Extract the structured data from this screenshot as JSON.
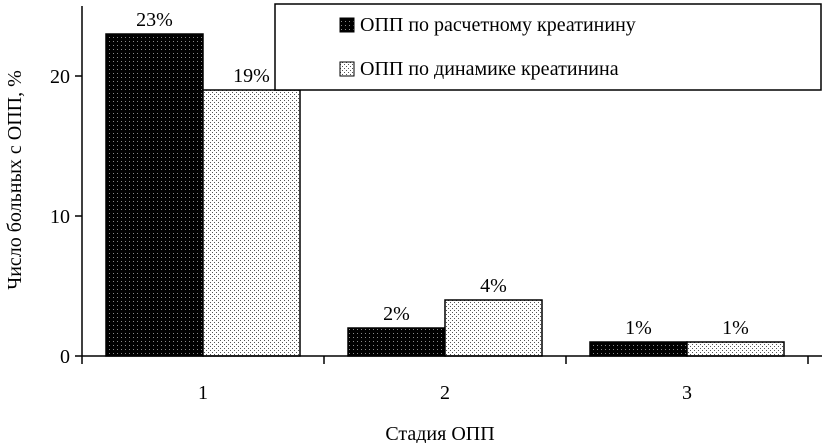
{
  "chart_data": {
    "type": "bar",
    "title": "",
    "xlabel": "Стадия ОПП",
    "ylabel": "Число больных с ОПП, %",
    "categories": [
      "1",
      "2",
      "3"
    ],
    "ylim": [
      0,
      25
    ],
    "yticks": [
      0,
      10,
      20
    ],
    "grid": false,
    "legend_position": "top-right",
    "series": [
      {
        "name": "ОПП по расчетному креатинину",
        "values": [
          23,
          2,
          1
        ],
        "labels": [
          "23%",
          "2%",
          "1%"
        ],
        "fill": "pattern-dark",
        "color": "#111111"
      },
      {
        "name": "ОПП по динамике креатинина",
        "values": [
          19,
          4,
          1
        ],
        "labels": [
          "19%",
          "4%",
          "1%"
        ],
        "fill": "pattern-light",
        "color": "#d9d9d9"
      }
    ]
  }
}
